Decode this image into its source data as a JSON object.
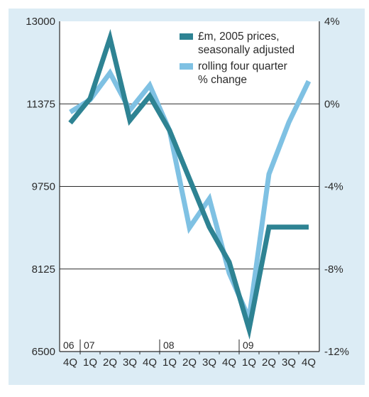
{
  "colors": {
    "panel_background": "#dcecf5",
    "plot_background": "#ffffff",
    "gridline": "#2a2a2a",
    "axis": "#2a2a2a",
    "series_level": "#2e8393",
    "series_change": "#7fc1e3"
  },
  "chart_data": {
    "type": "line",
    "x": [
      "4Q",
      "1Q",
      "2Q",
      "3Q",
      "4Q",
      "1Q",
      "2Q",
      "3Q",
      "4Q",
      "1Q",
      "2Q",
      "3Q",
      "4Q"
    ],
    "year_labels": [
      {
        "label": "06",
        "index": 0
      },
      {
        "label": "07",
        "index": 1
      },
      {
        "label": "08",
        "index": 5
      },
      {
        "label": "09",
        "index": 9
      }
    ],
    "yleft": {
      "ticks": [
        "6500",
        "8125",
        "9750",
        "11375",
        "13000"
      ],
      "lim": [
        6500,
        13000
      ]
    },
    "yright": {
      "ticks": [
        "-12%",
        "-8%",
        "-4%",
        "0%",
        "4%"
      ],
      "lim": [
        -12,
        4
      ]
    },
    "grid": "horizontal",
    "legend_position": "top-right",
    "series": [
      {
        "name": "£m, 2005 prices, seasonally adjusted",
        "axis": "left",
        "color": "#2e8393",
        "values": [
          11000,
          11480,
          12670,
          11050,
          11530,
          10850,
          9900,
          8950,
          8260,
          6940,
          8950,
          8950,
          8950
        ]
      },
      {
        "name": "rolling four quarter % change",
        "axis": "right",
        "color": "#7fc1e3",
        "values": [
          -0.4,
          0.2,
          1.5,
          -0.3,
          0.9,
          -1.3,
          -6.0,
          -4.6,
          -8.2,
          -10.4,
          -3.4,
          -0.9,
          1.1
        ]
      }
    ]
  },
  "legend": {
    "entries": [
      {
        "lines": [
          "£m, 2005 prices,",
          "seasonally adjusted"
        ],
        "color": "#2e8393"
      },
      {
        "lines": [
          "rolling four quarter",
          "% change"
        ],
        "color": "#7fc1e3"
      }
    ]
  }
}
